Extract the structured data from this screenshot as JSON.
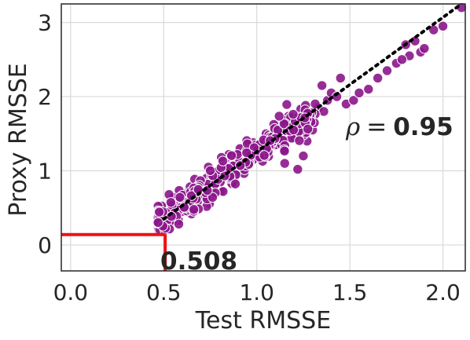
{
  "chart_data": {
    "type": "scatter",
    "title": "",
    "xlabel": "Test RMSSE",
    "ylabel": "Proxy RMSSE",
    "xlim": [
      -0.05,
      2.12
    ],
    "ylim": [
      -0.35,
      3.25
    ],
    "x_ticks": [
      0.0,
      0.5,
      1.0,
      1.5,
      2.0
    ],
    "x_tick_labels": [
      "0.0",
      "0.5",
      "1.0",
      "1.5",
      "2.0"
    ],
    "y_ticks": [
      0,
      1,
      2,
      3
    ],
    "y_tick_labels": [
      "0",
      "1",
      "2",
      "3"
    ],
    "grid": true,
    "colors": {
      "points": "#8B168B",
      "point_edge": "#ffffff",
      "fit_line": "#000000",
      "marker_lines": "#ee1111",
      "grid": "#d9d9d9",
      "frame": "#262626"
    },
    "fit_line": {
      "style": "dotted",
      "points": [
        [
          0.5,
          0.35
        ],
        [
          2.1,
          3.25
        ]
      ]
    },
    "marker_point": {
      "x": 0.508,
      "y": 0.14
    },
    "annotations": {
      "min_test_label": "0.508",
      "rho_symbol": "ρ",
      "rho_equals": "=",
      "rho_value": "0.95"
    },
    "series": [
      {
        "n": 400,
        "x_range": [
          0.47,
          2.1
        ],
        "trend_slope": 1.8,
        "trend_intercept": -0.55
      }
    ],
    "points": [
      [
        0.47,
        0.28
      ],
      [
        0.5,
        0.3
      ],
      [
        0.52,
        0.38
      ],
      [
        0.55,
        0.42
      ],
      [
        0.56,
        0.55
      ],
      [
        0.58,
        0.5
      ],
      [
        0.6,
        0.62
      ],
      [
        0.62,
        0.58
      ],
      [
        0.63,
        0.7
      ],
      [
        0.65,
        0.66
      ],
      [
        0.66,
        0.78
      ],
      [
        0.68,
        0.6
      ],
      [
        0.7,
        0.82
      ],
      [
        0.72,
        0.75
      ],
      [
        0.73,
        0.9
      ],
      [
        0.75,
        0.86
      ],
      [
        0.77,
        0.95
      ],
      [
        0.78,
        0.8
      ],
      [
        0.8,
        1.0
      ],
      [
        0.82,
        0.92
      ],
      [
        0.84,
        1.05
      ],
      [
        0.86,
        0.98
      ],
      [
        0.88,
        1.12
      ],
      [
        0.9,
        1.05
      ],
      [
        0.92,
        1.2
      ],
      [
        0.94,
        1.1
      ],
      [
        0.96,
        1.28
      ],
      [
        0.98,
        1.15
      ],
      [
        1.0,
        1.32
      ],
      [
        1.02,
        1.22
      ],
      [
        1.04,
        1.4
      ],
      [
        1.06,
        1.3
      ],
      [
        1.08,
        1.45
      ],
      [
        1.1,
        1.35
      ],
      [
        1.12,
        1.5
      ],
      [
        1.15,
        1.42
      ],
      [
        1.18,
        1.58
      ],
      [
        1.2,
        1.45
      ],
      [
        1.22,
        1.62
      ],
      [
        1.25,
        1.2
      ],
      [
        1.28,
        1.7
      ],
      [
        1.3,
        1.55
      ],
      [
        1.33,
        1.85
      ],
      [
        1.35,
        2.15
      ],
      [
        1.38,
        1.95
      ],
      [
        1.4,
        2.05
      ],
      [
        1.43,
        2.0
      ],
      [
        1.45,
        2.25
      ],
      [
        1.48,
        1.9
      ],
      [
        1.52,
        1.95
      ],
      [
        1.55,
        2.05
      ],
      [
        1.6,
        2.1
      ],
      [
        1.65,
        2.25
      ],
      [
        1.7,
        2.35
      ],
      [
        1.75,
        2.45
      ],
      [
        1.8,
        2.7
      ],
      [
        1.82,
        2.55
      ],
      [
        1.85,
        2.75
      ],
      [
        1.88,
        2.6
      ],
      [
        1.95,
        2.9
      ],
      [
        2.0,
        2.95
      ],
      [
        2.1,
        3.2
      ],
      [
        1.9,
        2.65
      ],
      [
        1.78,
        2.5
      ],
      [
        1.22,
        1.02
      ],
      [
        1.15,
        1.1
      ],
      [
        0.98,
        1.38
      ],
      [
        0.85,
        1.22
      ],
      [
        0.64,
        0.48
      ],
      [
        0.57,
        0.4
      ],
      [
        0.69,
        0.72
      ],
      [
        0.74,
        1.05
      ],
      [
        0.81,
        1.18
      ],
      [
        0.91,
        1.3
      ],
      [
        1.05,
        1.5
      ],
      [
        1.13,
        1.6
      ],
      [
        1.27,
        1.4
      ],
      [
        1.36,
        1.8
      ]
    ]
  }
}
